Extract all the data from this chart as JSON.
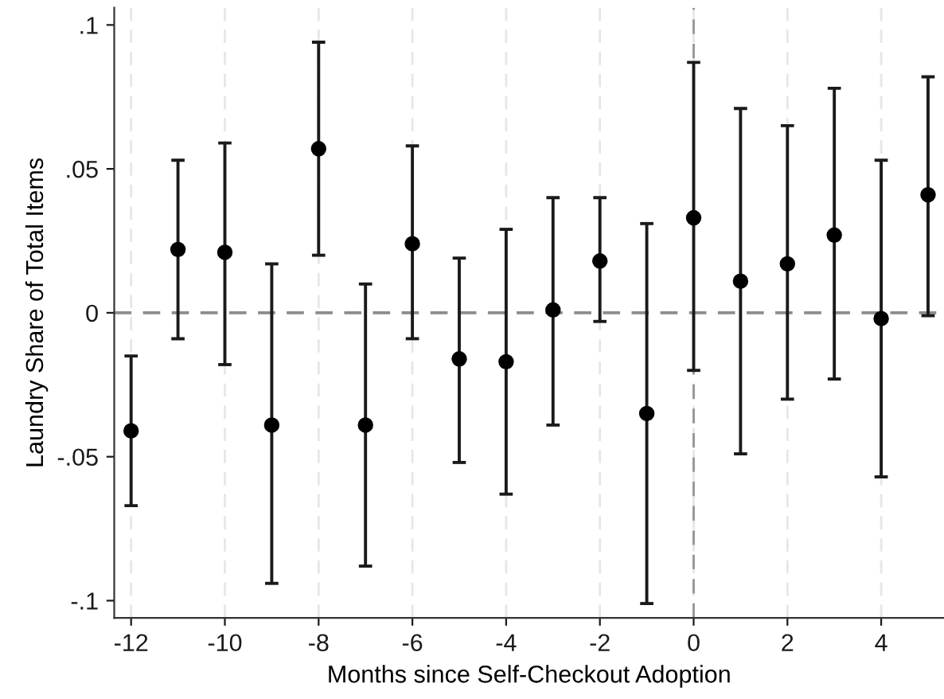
{
  "chart_data": {
    "type": "scatter",
    "xlabel": "Months since Self-Checkout Adoption",
    "ylabel": "Laundry Share of Total Items",
    "x": [
      -12,
      -11,
      -10,
      -9,
      -8,
      -7,
      -6,
      -5,
      -4,
      -3,
      -2,
      -1,
      0,
      1,
      2,
      3,
      4,
      5
    ],
    "series": [
      {
        "color": "#000000",
        "values": [
          -0.041,
          0.022,
          0.021,
          -0.039,
          0.057,
          -0.039,
          0.024,
          -0.016,
          -0.017,
          0.001,
          0.018,
          -0.035,
          0.033,
          0.011,
          0.017,
          0.027,
          -0.002,
          0.041
        ],
        "errors": [
          [
            -0.067,
            -0.015
          ],
          [
            -0.009,
            0.053
          ],
          [
            -0.018,
            0.059
          ],
          [
            -0.094,
            0.017
          ],
          [
            0.02,
            0.094
          ],
          [
            -0.088,
            0.01
          ],
          [
            -0.009,
            0.058
          ],
          [
            -0.052,
            0.019
          ],
          [
            -0.063,
            0.029
          ],
          [
            -0.039,
            0.04
          ],
          [
            -0.003,
            0.04
          ],
          [
            -0.101,
            0.031
          ],
          [
            -0.02,
            0.087
          ],
          [
            -0.049,
            0.071
          ],
          [
            -0.03,
            0.065
          ],
          [
            -0.023,
            0.078
          ],
          [
            -0.057,
            0.053
          ],
          [
            -0.001,
            0.082
          ]
        ]
      }
    ],
    "marker": "circle",
    "xlim": [
      -12.36,
      5.34
    ],
    "ylim": [
      -0.106,
      0.106
    ],
    "xticks": [
      -12,
      -10,
      -8,
      -6,
      -4,
      -2,
      0,
      2,
      4
    ],
    "yticks": [
      {
        "value": 0.1,
        "label": ".1"
      },
      {
        "value": 0.05,
        "label": ".05"
      },
      0,
      {
        "value": -0.05,
        "label": "-.05"
      },
      {
        "value": -0.1,
        "label": "-.1"
      }
    ],
    "grid": "x",
    "ref_lines": [
      {
        "axis": "y",
        "value": 0,
        "color": "#8c8c8c",
        "line_style": "dashed"
      },
      {
        "axis": "x",
        "value": 0,
        "color": "#9a9a9a",
        "line_style": "dashed"
      }
    ]
  }
}
